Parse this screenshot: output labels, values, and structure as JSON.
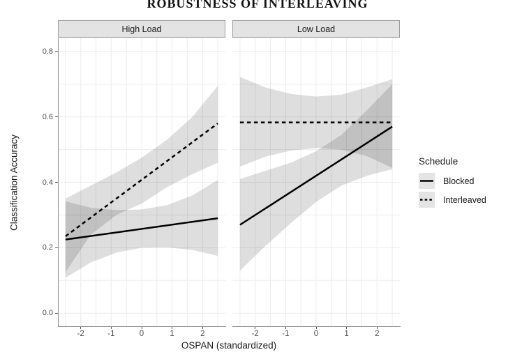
{
  "page_title": "ROBUSTNESS OF INTERLEAVING",
  "chart_data": {
    "type": "line",
    "title": "ROBUSTNESS OF INTERLEAVING",
    "xlabel": "OSPAN (standardized)",
    "ylabel": "Classification Accuracy",
    "xlim": [
      -2.75,
      2.75
    ],
    "ylim": [
      -0.04,
      0.84
    ],
    "x_major_ticks": [
      -2,
      -1,
      0,
      1,
      2
    ],
    "x_grid_step": 0.5,
    "y_major_ticks": [
      0.0,
      0.2,
      0.4,
      0.6,
      0.8
    ],
    "y_tick_labels": [
      "0.0",
      "0.2",
      "0.4",
      "0.6",
      "0.8"
    ],
    "x_tick_labels": [
      "-2",
      "-1",
      "0",
      "1",
      "2"
    ],
    "y_grid_step": 0.1,
    "grid": true,
    "legend_position": "right",
    "legend": {
      "title": "Schedule",
      "items": [
        {
          "label": "Blocked",
          "style": "solid"
        },
        {
          "label": "Interleaved",
          "style": "dashed"
        }
      ]
    },
    "colors": {
      "line": "#000000",
      "ribbon": "rgba(0,0,0,0.13)",
      "grid": "#ececec",
      "axis_line": "#8f8f8f",
      "strip_fill": "#e3e3e3",
      "strip_border": "#9c9c9c",
      "tick_text": "#4d4d4d",
      "legend_key_fill": "#e4e4e4"
    },
    "facets": [
      {
        "label": "High Load",
        "series": [
          {
            "name": "Blocked",
            "style": "solid",
            "line": [
              [
                -2.5,
                0.225
              ],
              [
                2.5,
                0.29
              ]
            ],
            "ribbon": [
              [
                -2.5,
                0.108,
                0.342
              ],
              [
                -1.67,
                0.155,
                0.322
              ],
              [
                -0.83,
                0.185,
                0.315
              ],
              [
                0,
                0.2,
                0.317
              ],
              [
                0.83,
                0.201,
                0.33
              ],
              [
                1.67,
                0.193,
                0.36
              ],
              [
                2.5,
                0.175,
                0.407
              ]
            ]
          },
          {
            "name": "Interleaved",
            "style": "dashed",
            "line": [
              [
                -2.5,
                0.235
              ],
              [
                2.5,
                0.58
              ]
            ],
            "ribbon": [
              [
                -2.5,
                0.125,
                0.35
              ],
              [
                -1.67,
                0.24,
                0.39
              ],
              [
                -0.83,
                0.3,
                0.43
              ],
              [
                0,
                0.335,
                0.475
              ],
              [
                0.83,
                0.385,
                0.53
              ],
              [
                1.67,
                0.425,
                0.6
              ],
              [
                2.5,
                0.46,
                0.695
              ]
            ]
          }
        ]
      },
      {
        "label": "Low Load",
        "series": [
          {
            "name": "Blocked",
            "style": "solid",
            "line": [
              [
                -2.5,
                0.27
              ],
              [
                2.5,
                0.57
              ]
            ],
            "ribbon": [
              [
                -2.5,
                0.13,
                0.41
              ],
              [
                -1.67,
                0.205,
                0.435
              ],
              [
                -0.83,
                0.275,
                0.46
              ],
              [
                0,
                0.34,
                0.495
              ],
              [
                0.83,
                0.39,
                0.545
              ],
              [
                1.67,
                0.42,
                0.62
              ],
              [
                2.5,
                0.44,
                0.7
              ]
            ]
          },
          {
            "name": "Interleaved",
            "style": "dashed",
            "line": [
              [
                -2.5,
                0.583
              ],
              [
                2.5,
                0.583
              ]
            ],
            "ribbon": [
              [
                -2.5,
                0.448,
                0.722
              ],
              [
                -1.67,
                0.478,
                0.69
              ],
              [
                -0.83,
                0.497,
                0.67
              ],
              [
                0,
                0.505,
                0.662
              ],
              [
                0.83,
                0.5,
                0.668
              ],
              [
                1.67,
                0.48,
                0.69
              ],
              [
                2.5,
                0.444,
                0.715
              ]
            ]
          }
        ]
      }
    ]
  }
}
